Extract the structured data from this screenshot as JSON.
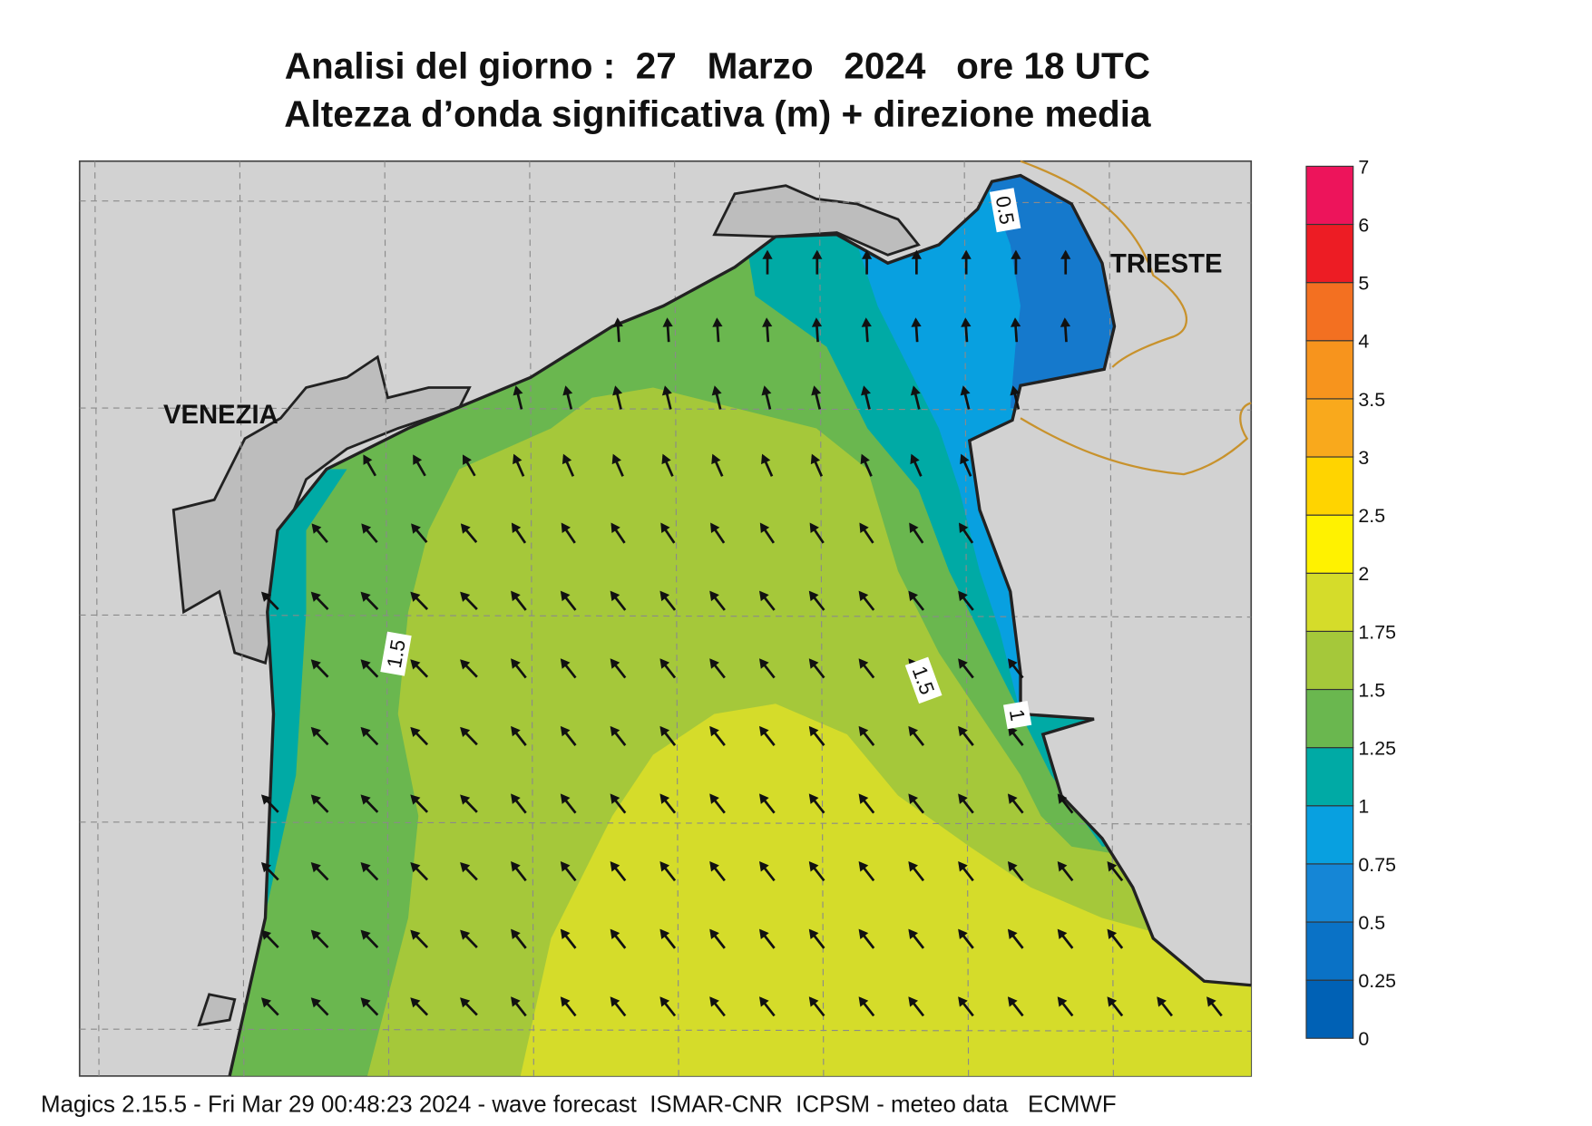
{
  "title": {
    "line1": "Analisi del giorno :  27   Marzo   2024   ore 18 UTC",
    "line2": "Altezza d’onda significativa (m) + direzione media"
  },
  "map": {
    "cities": [
      "VENEZIA",
      "TRIESTE"
    ],
    "contour_labels": [
      "1.5",
      "1.5",
      "0.5",
      "1"
    ]
  },
  "legend": {
    "labels": [
      "0",
      "0.25",
      "0.5",
      "0.75",
      "1",
      "1.25",
      "1.5",
      "1.75",
      "2",
      "2.5",
      "3",
      "3.5",
      "4",
      "5",
      "6",
      "7"
    ],
    "colors": [
      "#0061b5",
      "#0a72c6",
      "#1586d6",
      "#08a0e0",
      "#00aaa5",
      "#6ab74f",
      "#a5c83a",
      "#d5dc2a",
      "#fff200",
      "#ffd400",
      "#f9a91c",
      "#f7941d",
      "#f37021",
      "#ed1c24",
      "#ed145b"
    ]
  },
  "footer": "Magics 2.15.5 - Fri Mar 29 00:48:23 2024 - wave forecast  ISMAR-CNR  ICPSM - meteo data   ECMWF"
}
